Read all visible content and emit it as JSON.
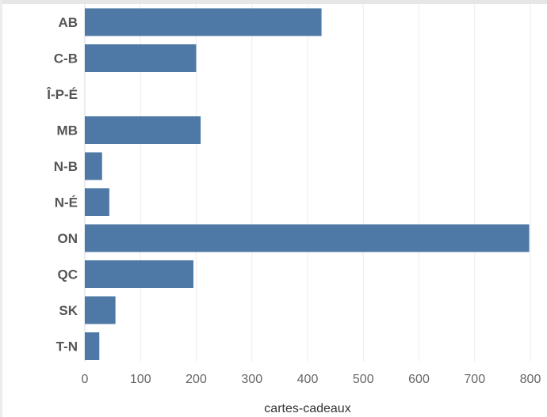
{
  "chart_data": {
    "type": "bar",
    "orientation": "horizontal",
    "categories": [
      "AB",
      "C-B",
      "Î-P-É",
      "MB",
      "N-B",
      "N-É",
      "ON",
      "QC",
      "SK",
      "T-N"
    ],
    "values": [
      425,
      200,
      0,
      208,
      31,
      44,
      798,
      195,
      55,
      26
    ],
    "title": "",
    "xlabel": "cartes-cadeaux",
    "ylabel": "",
    "xlim": [
      0,
      800
    ],
    "xticks": [
      0,
      100,
      200,
      300,
      400,
      500,
      600,
      700,
      800
    ],
    "grid": "vertical",
    "bar_color": "#4e79a7"
  }
}
